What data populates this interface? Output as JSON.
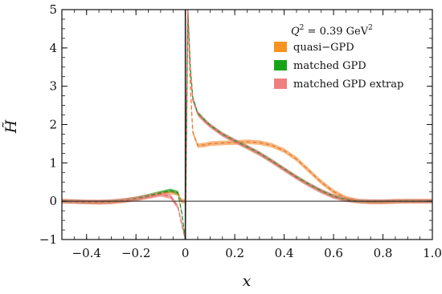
{
  "chart_data": {
    "type": "line",
    "xlabel": "x",
    "ylabel": "H̃",
    "xlim": [
      -0.5,
      1.0
    ],
    "ylim": [
      -1,
      5
    ],
    "xticks": [
      -0.4,
      -0.2,
      0,
      0.2,
      0.4,
      0.6,
      0.8,
      1.0
    ],
    "xtick_labels": [
      "−0.4",
      "−0.2",
      "0",
      "0.2",
      "0.4",
      "0.6",
      "0.8",
      "1.0"
    ],
    "yticks": [
      -1,
      0,
      1,
      2,
      3,
      4,
      5
    ],
    "ytick_labels": [
      "−1",
      "0",
      "1",
      "2",
      "3",
      "4",
      "5"
    ],
    "annotation": {
      "q2_prefix": "Q",
      "q2_exp": "2",
      "q2_value": " = 0.39 GeV",
      "q2_unit_exp": "2"
    },
    "legend_position": "top-right",
    "series": [
      {
        "name": "quasi−GPD",
        "color": "#f5a05a",
        "line_color": "#e07a2a",
        "x": [
          -0.5,
          -0.45,
          -0.4,
          -0.35,
          -0.3,
          -0.25,
          -0.2,
          -0.15,
          -0.1,
          -0.06,
          -0.03,
          -0.015,
          0.0,
          0.01,
          0.02,
          0.03,
          0.05,
          0.08,
          0.1,
          0.15,
          0.2,
          0.25,
          0.3,
          0.35,
          0.4,
          0.45,
          0.5,
          0.55,
          0.6,
          0.65,
          0.7,
          0.75,
          0.8,
          0.85,
          0.9,
          0.95,
          1.0
        ],
        "y": [
          0.0,
          -0.01,
          -0.02,
          -0.03,
          -0.02,
          0.01,
          0.06,
          0.13,
          0.2,
          0.24,
          0.2,
          0.0,
          0.0,
          5.0,
          3.0,
          1.8,
          1.45,
          1.47,
          1.5,
          1.52,
          1.53,
          1.55,
          1.53,
          1.46,
          1.32,
          1.1,
          0.8,
          0.5,
          0.25,
          0.08,
          0.0,
          -0.02,
          -0.02,
          -0.01,
          0.0,
          0.0,
          0.0
        ],
        "band": 0.06
      },
      {
        "name": "matched GPD",
        "color": "#35b035",
        "line_color": "#1e8c1e",
        "x": [
          -0.5,
          -0.45,
          -0.4,
          -0.35,
          -0.3,
          -0.25,
          -0.2,
          -0.15,
          -0.1,
          -0.06,
          -0.03,
          -0.015,
          0.0,
          0.01,
          0.02,
          0.03,
          0.05,
          0.08,
          0.1,
          0.15,
          0.2,
          0.25,
          0.3,
          0.35,
          0.4,
          0.45,
          0.5,
          0.55,
          0.6,
          0.65,
          0.7,
          0.75,
          0.8,
          0.85,
          0.9,
          0.95,
          1.0
        ],
        "y": [
          0.0,
          -0.01,
          -0.02,
          -0.02,
          -0.01,
          0.02,
          0.07,
          0.14,
          0.22,
          0.28,
          0.22,
          -0.3,
          -1.0,
          5.0,
          3.5,
          2.7,
          2.3,
          2.1,
          1.98,
          1.75,
          1.58,
          1.42,
          1.25,
          1.05,
          0.84,
          0.63,
          0.44,
          0.27,
          0.13,
          0.04,
          0.0,
          -0.01,
          -0.01,
          0.0,
          0.0,
          0.0,
          0.0
        ],
        "band": 0.05
      },
      {
        "name": "matched GPD extrap",
        "color": "#f08a8a",
        "line_color": "#e06767",
        "x": [
          -0.5,
          -0.45,
          -0.4,
          -0.35,
          -0.3,
          -0.25,
          -0.2,
          -0.15,
          -0.1,
          -0.06,
          -0.03,
          -0.015,
          0.0,
          0.01,
          0.02,
          0.03,
          0.05,
          0.08,
          0.1,
          0.15,
          0.2,
          0.25,
          0.3,
          0.35,
          0.4,
          0.45,
          0.5,
          0.55,
          0.6,
          0.65,
          0.7,
          0.75,
          0.8,
          0.85,
          0.9,
          0.95,
          1.0
        ],
        "y": [
          0.0,
          -0.01,
          -0.02,
          -0.02,
          -0.01,
          0.02,
          0.06,
          0.12,
          0.18,
          0.12,
          -0.15,
          -0.6,
          -1.0,
          5.0,
          3.4,
          2.65,
          2.28,
          2.08,
          1.97,
          1.74,
          1.57,
          1.41,
          1.24,
          1.04,
          0.83,
          0.62,
          0.43,
          0.26,
          0.12,
          0.04,
          0.0,
          -0.01,
          -0.01,
          0.0,
          0.0,
          0.0,
          0.0
        ],
        "band": 0.06
      }
    ]
  }
}
